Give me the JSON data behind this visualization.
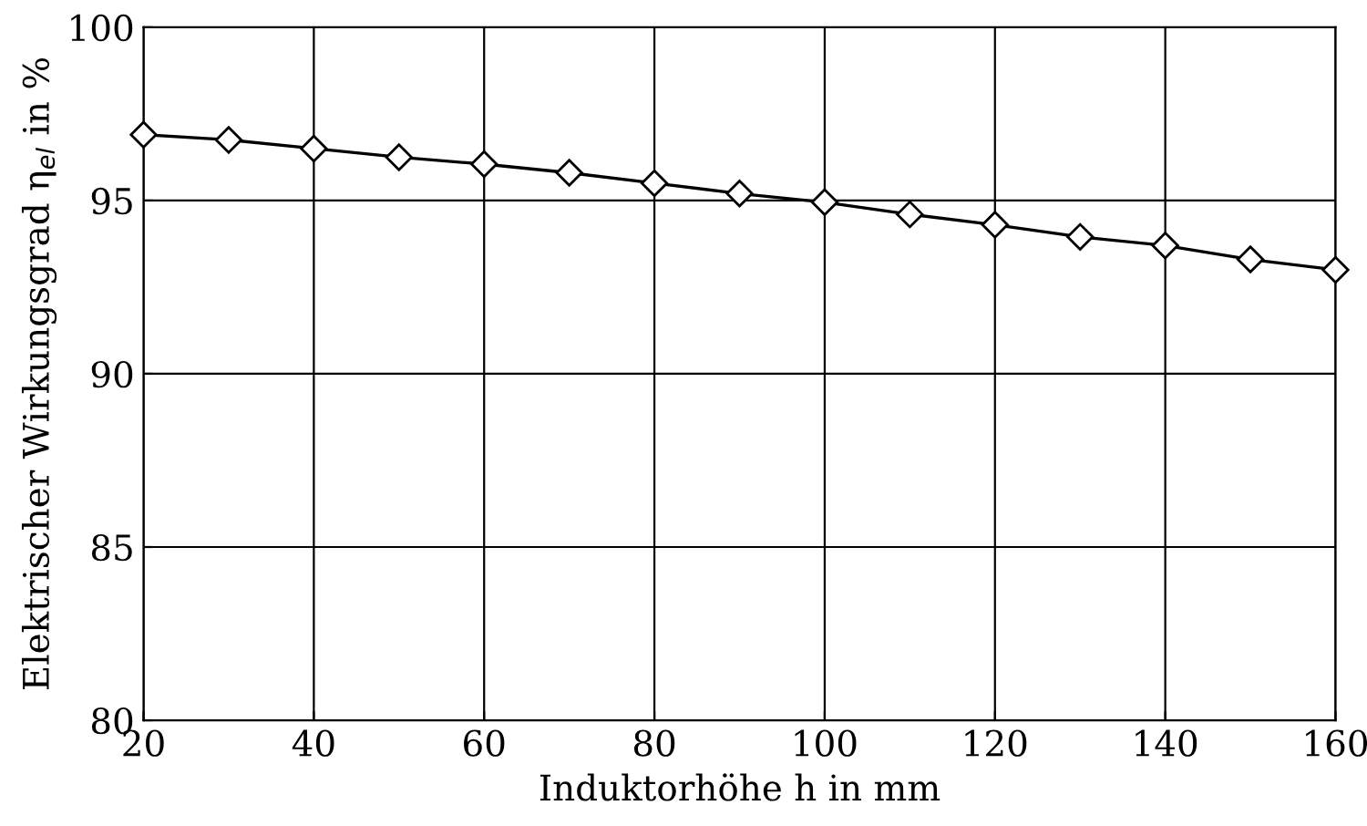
{
  "chart_data": {
    "type": "line",
    "xlabel": "Induktorhöhe h in mm",
    "ylabel": "Elektrischer Wirkungsgrad η$_{el}$ in %",
    "x": [
      20,
      30,
      40,
      50,
      60,
      70,
      80,
      90,
      100,
      110,
      120,
      130,
      140,
      150,
      160
    ],
    "series": [
      {
        "color": "#000000",
        "values": [
          96.9,
          96.75,
          96.5,
          96.25,
          96.05,
          95.8,
          95.5,
          95.2,
          94.95,
          94.6,
          94.3,
          93.95,
          93.7,
          93.3,
          93.0
        ]
      }
    ],
    "xlim": [
      20,
      160
    ],
    "xticks": [
      20,
      40,
      60,
      80,
      100,
      120,
      140,
      160
    ],
    "ylim": [
      80,
      100
    ],
    "yticks": [
      80,
      85,
      90,
      95,
      100
    ],
    "grid": true,
    "marker": "diamond",
    "line_style": "solid"
  }
}
